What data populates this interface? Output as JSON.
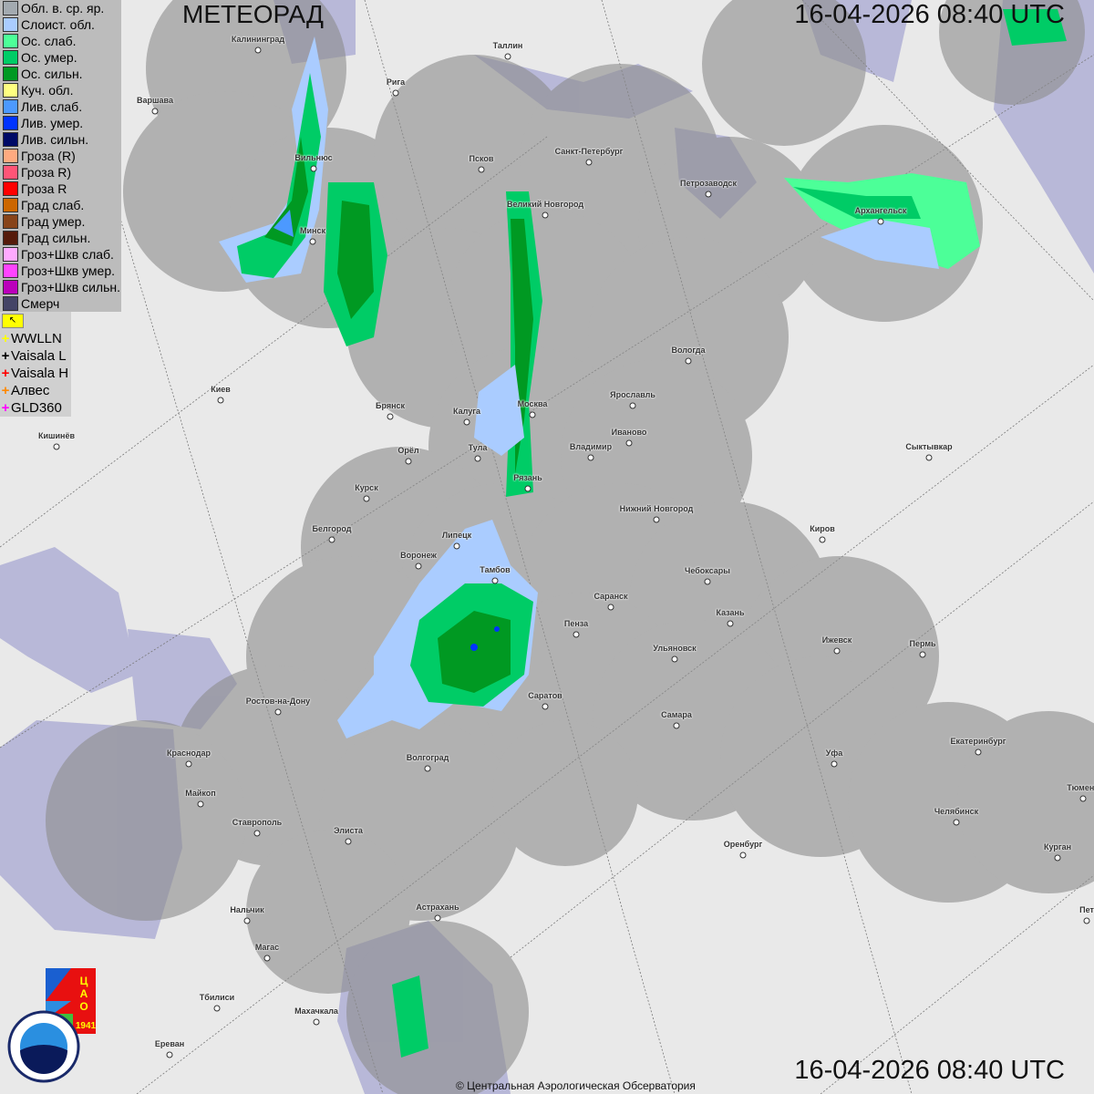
{
  "header": {
    "title": "МЕТЕОРАД",
    "timestamp": "16-04-2026  08:40 UTC"
  },
  "footer": {
    "timestamp": "16-04-2026  08:40 UTC",
    "copyright": "© Центральная Аэрологическая Обсерватория"
  },
  "legend": [
    {
      "label": "Обл. в. ср. яр.",
      "color": "#a3aab0"
    },
    {
      "label": "Слоист. обл.",
      "color": "#aaccff"
    },
    {
      "label": "Ос. слаб.",
      "color": "#4cff98"
    },
    {
      "label": "Ос. умер.",
      "color": "#00cc66"
    },
    {
      "label": "Ос. сильн.",
      "color": "#009922"
    },
    {
      "label": "Куч. обл.",
      "color": "#ffff80"
    },
    {
      "label": "Лив. слаб.",
      "color": "#4c99ff"
    },
    {
      "label": "Лив. умер.",
      "color": "#0033ff"
    },
    {
      "label": "Лив. сильн.",
      "color": "#000a66"
    },
    {
      "label": "Гроза (R)",
      "color": "#ffaa80"
    },
    {
      "label": "Гроза R)",
      "color": "#ff5577"
    },
    {
      "label": "Гроза R",
      "color": "#ff0000"
    },
    {
      "label": "Град слаб.",
      "color": "#cc6600"
    },
    {
      "label": "Град умер.",
      "color": "#88441a"
    },
    {
      "label": "Град сильн.",
      "color": "#551a0a"
    },
    {
      "label": "Гроз+Шкв слаб.",
      "color": "#ffaaff"
    },
    {
      "label": "Гроз+Шкв умер.",
      "color": "#ff44ff"
    },
    {
      "label": "Гроз+Шкв сильн.",
      "color": "#bb00bb"
    },
    {
      "label": "Смерч",
      "color": "#444466"
    }
  ],
  "lightning_legend": [
    {
      "label": "WWLLN",
      "color": "#ffff00"
    },
    {
      "label": "Vaisala L",
      "color": "#000000"
    },
    {
      "label": "Vaisala H",
      "color": "#ff0000"
    },
    {
      "label": "Алвес",
      "color": "#ff8800"
    },
    {
      "label": "GLD360",
      "color": "#ff00ff"
    }
  ],
  "logos": {
    "cao": "ЦАО 1941",
    "roshydromet": "РОСГИДРОМЕТ ROSHYDROMET"
  },
  "cities": [
    [
      "Калининград",
      283,
      55
    ],
    [
      "Варшава",
      170,
      122
    ],
    [
      "Рига",
      434,
      102
    ],
    [
      "Таллин",
      557,
      62
    ],
    [
      "Вильнюс",
      344,
      185
    ],
    [
      "Псков",
      528,
      186
    ],
    [
      "Санкт-Петербург",
      646,
      178
    ],
    [
      "Петрозаводск",
      777,
      213
    ],
    [
      "Великий Новгород",
      598,
      236
    ],
    [
      "Архангельск",
      966,
      243
    ],
    [
      "Минск",
      343,
      265
    ],
    [
      "Вологда",
      755,
      396
    ],
    [
      "Киев",
      242,
      439
    ],
    [
      "Брянск",
      428,
      457
    ],
    [
      "Калуга",
      512,
      463
    ],
    [
      "Москва",
      584,
      455
    ],
    [
      "Ярославль",
      694,
      445
    ],
    [
      "Иваново",
      690,
      486
    ],
    [
      "Владимир",
      648,
      502
    ],
    [
      "Кишинёв",
      62,
      490
    ],
    [
      "Орёл",
      448,
      506
    ],
    [
      "Тула",
      524,
      503
    ],
    [
      "Сыктывкар",
      1019,
      502
    ],
    [
      "Рязань",
      579,
      536
    ],
    [
      "Курск",
      402,
      547
    ],
    [
      "Нижний Новгород",
      720,
      570
    ],
    [
      "Белгород",
      364,
      592
    ],
    [
      "Киров",
      902,
      592
    ],
    [
      "Липецк",
      501,
      599
    ],
    [
      "Воронеж",
      459,
      621
    ],
    [
      "Тамбов",
      543,
      637
    ],
    [
      "Чебоксары",
      776,
      638
    ],
    [
      "Саранск",
      670,
      666
    ],
    [
      "Пенза",
      632,
      696
    ],
    [
      "Казань",
      801,
      684
    ],
    [
      "Ижевск",
      918,
      714
    ],
    [
      "Пермь",
      1012,
      718
    ],
    [
      "Ульяновск",
      740,
      723
    ],
    [
      "Ростов-на-Дону",
      305,
      781
    ],
    [
      "Саратов",
      598,
      775
    ],
    [
      "Самара",
      742,
      796
    ],
    [
      "Краснодар",
      207,
      838
    ],
    [
      "Волгоград",
      469,
      843
    ],
    [
      "Уфа",
      915,
      838
    ],
    [
      "Екатеринбург",
      1073,
      825
    ],
    [
      "Тюмень",
      1188,
      876
    ],
    [
      "Майкоп",
      220,
      882
    ],
    [
      "Ставрополь",
      282,
      914
    ],
    [
      "Элиста",
      382,
      923
    ],
    [
      "Челябинск",
      1049,
      902
    ],
    [
      "Оренбург",
      815,
      938
    ],
    [
      "Курган",
      1160,
      941
    ],
    [
      "Нальчик",
      271,
      1010
    ],
    [
      "Астрахань",
      480,
      1007
    ],
    [
      "Пет",
      1192,
      1010
    ],
    [
      "Магас",
      293,
      1051
    ],
    [
      "Тбилиси",
      238,
      1106
    ],
    [
      "Махачкала",
      347,
      1121
    ],
    [
      "Ереван",
      186,
      1157
    ]
  ]
}
